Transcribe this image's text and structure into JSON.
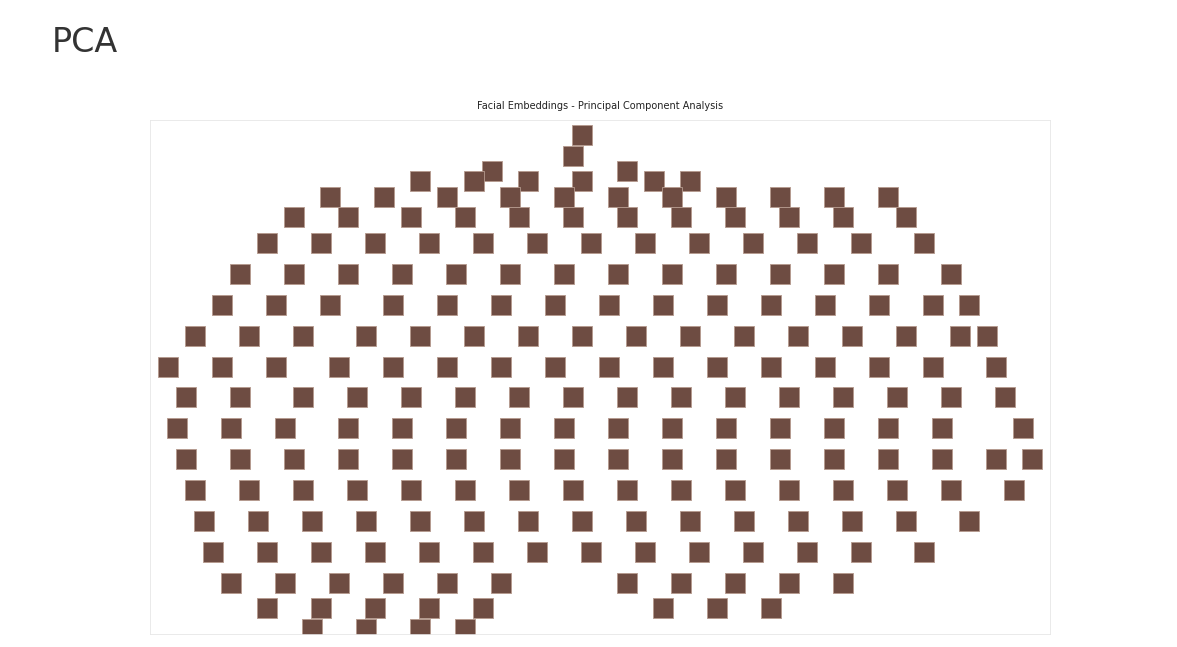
{
  "header": "PCA",
  "chart_data": {
    "type": "scatter",
    "title": "Facial Embeddings - Principal Component Analysis",
    "x": [
      48,
      47,
      53,
      38,
      30,
      36,
      42,
      48,
      56,
      60,
      20,
      26,
      33,
      40,
      46,
      52,
      58,
      64,
      70,
      76,
      82,
      16,
      22,
      29,
      35,
      41,
      47,
      53,
      59,
      65,
      71,
      77,
      84,
      13,
      19,
      25,
      31,
      37,
      43,
      49,
      55,
      61,
      67,
      73,
      79,
      86,
      10,
      16,
      22,
      28,
      34,
      40,
      46,
      52,
      58,
      64,
      70,
      76,
      82,
      89,
      8,
      14,
      20,
      27,
      33,
      39,
      45,
      51,
      57,
      63,
      69,
      75,
      81,
      87,
      91,
      5,
      11,
      17,
      24,
      30,
      36,
      42,
      48,
      54,
      60,
      66,
      72,
      78,
      84,
      90,
      93,
      2,
      8,
      14,
      21,
      27,
      33,
      39,
      45,
      51,
      57,
      63,
      69,
      75,
      81,
      87,
      94,
      4,
      10,
      17,
      23,
      29,
      35,
      41,
      47,
      53,
      59,
      65,
      71,
      77,
      83,
      89,
      95,
      3,
      9,
      15,
      22,
      28,
      34,
      40,
      46,
      52,
      58,
      64,
      70,
      76,
      82,
      88,
      97,
      4,
      10,
      16,
      22,
      28,
      34,
      40,
      46,
      52,
      58,
      64,
      70,
      76,
      82,
      88,
      94,
      98,
      5,
      11,
      17,
      23,
      29,
      35,
      41,
      47,
      53,
      59,
      65,
      71,
      77,
      83,
      89,
      96,
      6,
      12,
      18,
      24,
      30,
      36,
      42,
      48,
      54,
      60,
      66,
      72,
      78,
      84,
      91,
      7,
      13,
      19,
      25,
      31,
      37,
      43,
      49,
      55,
      61,
      67,
      73,
      79,
      86,
      9,
      15,
      21,
      27,
      33,
      39,
      53,
      59,
      65,
      71,
      77,
      13,
      19,
      25,
      31,
      37,
      57,
      63,
      69,
      18,
      24,
      30,
      35
    ],
    "values": [
      97,
      93,
      90,
      90,
      88,
      88,
      88,
      88,
      88,
      88,
      85,
      85,
      85,
      85,
      85,
      85,
      85,
      85,
      85,
      85,
      85,
      81,
      81,
      81,
      81,
      81,
      81,
      81,
      81,
      81,
      81,
      81,
      81,
      76,
      76,
      76,
      76,
      76,
      76,
      76,
      76,
      76,
      76,
      76,
      76,
      76,
      70,
      70,
      70,
      70,
      70,
      70,
      70,
      70,
      70,
      70,
      70,
      70,
      70,
      70,
      64,
      64,
      64,
      64,
      64,
      64,
      64,
      64,
      64,
      64,
      64,
      64,
      64,
      64,
      64,
      58,
      58,
      58,
      58,
      58,
      58,
      58,
      58,
      58,
      58,
      58,
      58,
      58,
      58,
      58,
      58,
      52,
      52,
      52,
      52,
      52,
      52,
      52,
      52,
      52,
      52,
      52,
      52,
      52,
      52,
      52,
      52,
      46,
      46,
      46,
      46,
      46,
      46,
      46,
      46,
      46,
      46,
      46,
      46,
      46,
      46,
      46,
      46,
      40,
      40,
      40,
      40,
      40,
      40,
      40,
      40,
      40,
      40,
      40,
      40,
      40,
      40,
      40,
      40,
      34,
      34,
      34,
      34,
      34,
      34,
      34,
      34,
      34,
      34,
      34,
      34,
      34,
      34,
      34,
      34,
      34,
      28,
      28,
      28,
      28,
      28,
      28,
      28,
      28,
      28,
      28,
      28,
      28,
      28,
      28,
      28,
      28,
      22,
      22,
      22,
      22,
      22,
      22,
      22,
      22,
      22,
      22,
      22,
      22,
      22,
      22,
      22,
      16,
      16,
      16,
      16,
      16,
      16,
      16,
      16,
      16,
      16,
      16,
      16,
      16,
      16,
      10,
      10,
      10,
      10,
      10,
      10,
      10,
      10,
      10,
      10,
      10,
      5,
      5,
      5,
      5,
      5,
      5,
      5,
      5,
      1,
      1,
      1,
      1
    ],
    "xlim": [
      0,
      100
    ],
    "ylim": [
      0,
      100
    ],
    "tick_labels": false,
    "color": "#6e4c42",
    "marker": "square"
  }
}
